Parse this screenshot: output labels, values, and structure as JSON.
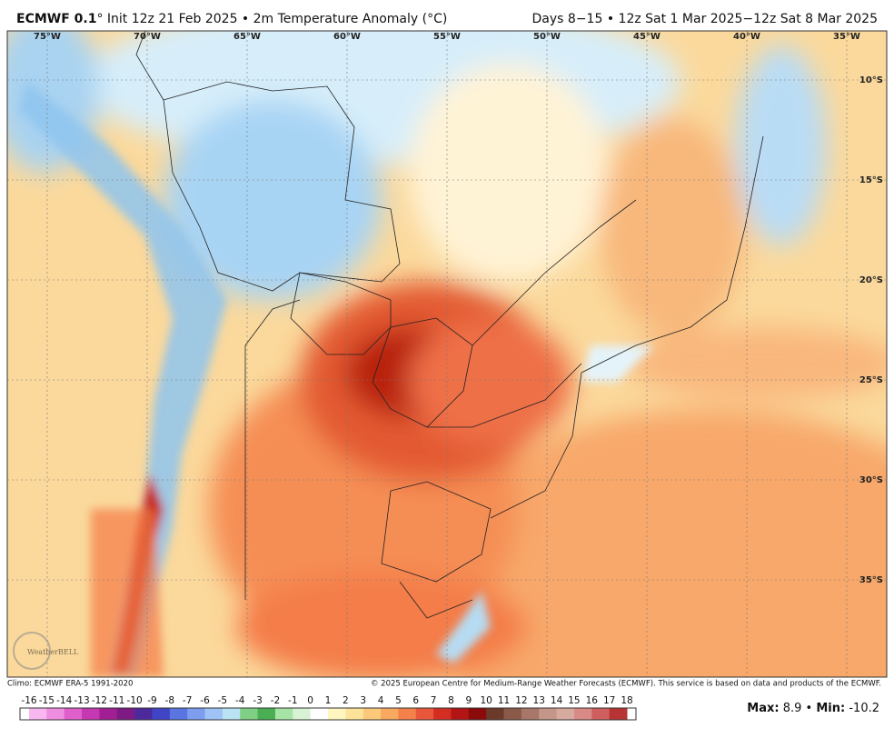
{
  "header": {
    "title_model": "ECMWF 0.1",
    "title_rest": "° Init 12z 21 Feb 2025 • 2m Temperature Anomaly (°C)",
    "valid": "Days 8−15 • 12z Sat 1 Mar 2025−12z Sat 8 Mar 2025"
  },
  "map": {
    "lon_labels": [
      "75°W",
      "70°W",
      "65°W",
      "60°W",
      "55°W",
      "50°W",
      "45°W",
      "40°W",
      "35°W"
    ],
    "lat_labels": [
      "10°S",
      "15°S",
      "20°S",
      "25°S",
      "30°S",
      "35°S"
    ],
    "watermark": "WeatherBELL"
  },
  "footer": {
    "climo": "Climo: ECMWF ERA-5 1991-2020",
    "copyright": "© 2025 European Centre for Medium-Range Weather Forecasts (ECMWF). This service is based on data and products of the ECMWF."
  },
  "colorbar": {
    "ticks": [
      -16,
      -15,
      -14,
      -13,
      -12,
      -11,
      -10,
      -9,
      -8,
      -7,
      -6,
      -5,
      -4,
      -3,
      -2,
      -1,
      0,
      1,
      2,
      3,
      4,
      5,
      6,
      7,
      8,
      9,
      10,
      11,
      12,
      13,
      14,
      15,
      16,
      17,
      18
    ],
    "colors": [
      "#f9b7f0",
      "#ef8ee0",
      "#df5fcd",
      "#c638b2",
      "#a21f93",
      "#7e1a83",
      "#4c2a9c",
      "#3f45c4",
      "#5a74e0",
      "#7d9eef",
      "#9fc2f7",
      "#b9e2f2",
      "#7fcf84",
      "#4aae52",
      "#a6e3a4",
      "#d8f2d4",
      "#ffffff",
      "#fff7bf",
      "#fde39a",
      "#fcc97a",
      "#f9a85f",
      "#f4814a",
      "#e9573a",
      "#d42e22",
      "#b31414",
      "#8b0a0a",
      "#6b3a2a",
      "#8a5a48",
      "#a8776a",
      "#c4968a",
      "#d7aaa0",
      "#d98a86",
      "#cf5f5f",
      "#b83434"
    ]
  },
  "stats": {
    "max_label": "Max:",
    "max": 8.9,
    "separator": "•",
    "min_label": "Min:",
    "min": -10.2
  }
}
